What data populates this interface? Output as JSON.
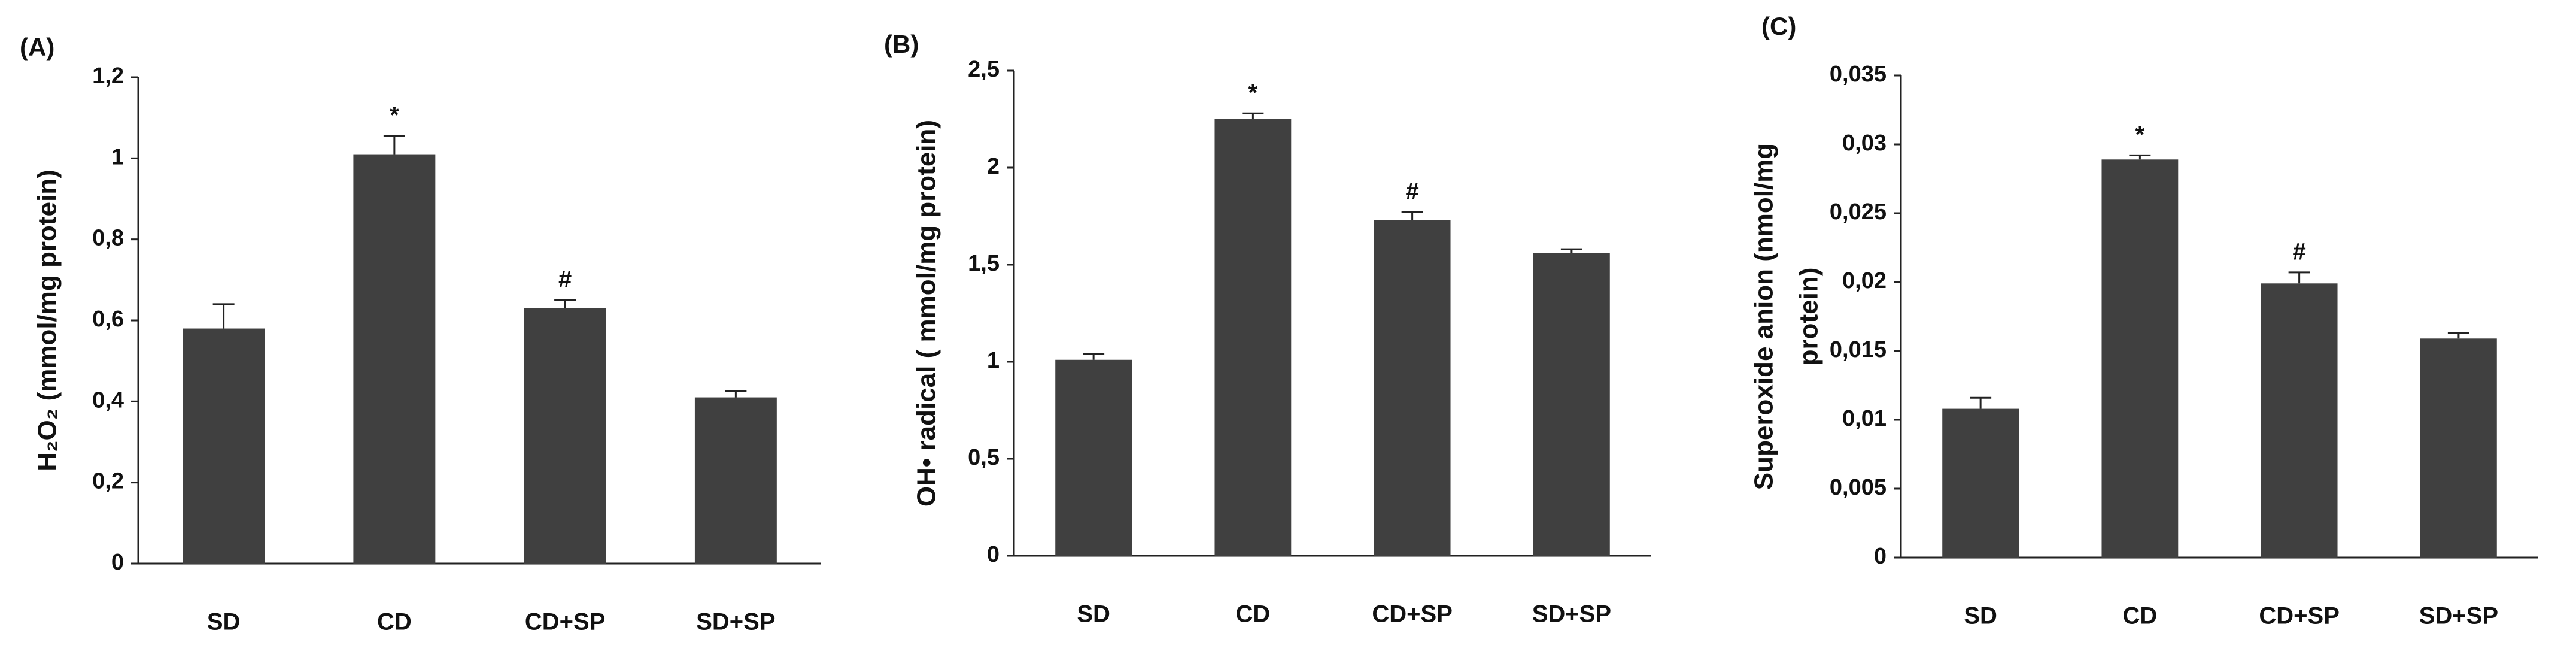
{
  "chart_data": [
    {
      "type": "bar",
      "panel_label": "(A)",
      "ylabel": [
        "H₂O₂ (mmol/mg protein)"
      ],
      "categories": [
        "SD",
        "CD",
        "CD+SP",
        "SD+SP"
      ],
      "values": [
        0.58,
        1.01,
        0.63,
        0.41
      ],
      "errors": [
        0.06,
        0.045,
        0.02,
        0.015
      ],
      "annotations": [
        null,
        "*",
        "#",
        null
      ],
      "color": "#404040",
      "ylim": [
        0,
        1.2
      ],
      "yticks": [
        0,
        {
          "value": 0.2,
          "label": "0,2"
        },
        {
          "value": 0.4,
          "label": "0,4"
        },
        {
          "value": 0.6,
          "label": "0,6"
        },
        {
          "value": 0.8,
          "label": "0,8"
        },
        1,
        {
          "value": 1.2,
          "label": "1,2"
        }
      ],
      "grid": false
    },
    {
      "type": "bar",
      "panel_label": "(B)",
      "ylabel": [
        "OH• radical ( mmol/mg protein)"
      ],
      "categories": [
        "SD",
        "CD",
        "CD+SP",
        "SD+SP"
      ],
      "values": [
        1.01,
        2.25,
        1.73,
        1.56
      ],
      "errors": [
        0.03,
        0.03,
        0.04,
        0.02
      ],
      "annotations": [
        null,
        "*",
        "#",
        null
      ],
      "color": "#404040",
      "ylim": [
        0,
        2.5
      ],
      "yticks": [
        0,
        {
          "value": 0.5,
          "label": "0,5"
        },
        1,
        {
          "value": 1.5,
          "label": "1,5"
        },
        2,
        {
          "value": 2.5,
          "label": "2,5"
        }
      ],
      "grid": false
    },
    {
      "type": "bar",
      "panel_label": "(C)",
      "ylabel": [
        "Superoxide anion (nmol/mg",
        "protein)"
      ],
      "categories": [
        "SD",
        "CD",
        "CD+SP",
        "SD+SP"
      ],
      "values": [
        0.0108,
        0.0289,
        0.0199,
        0.0159
      ],
      "errors": [
        0.0008,
        0.0003,
        0.0008,
        0.0004
      ],
      "annotations": [
        null,
        "*",
        "#",
        null
      ],
      "color": "#404040",
      "ylim": [
        0,
        0.035
      ],
      "yticks": [
        0,
        {
          "value": 0.005,
          "label": "0,005"
        },
        {
          "value": 0.01,
          "label": "0,01"
        },
        {
          "value": 0.015,
          "label": "0,015"
        },
        {
          "value": 0.02,
          "label": "0,02"
        },
        {
          "value": 0.025,
          "label": "0,025"
        },
        {
          "value": 0.03,
          "label": "0,03"
        },
        {
          "value": 0.035,
          "label": "0,035"
        }
      ],
      "grid": false
    }
  ]
}
